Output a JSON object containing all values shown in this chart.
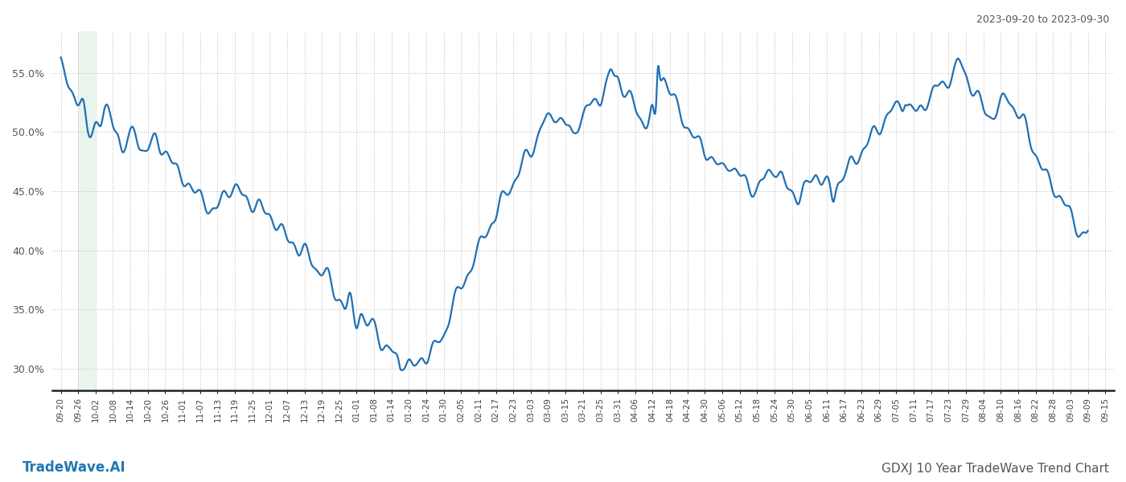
{
  "title_top_right": "2023-09-20 to 2023-09-30",
  "title_bottom_left": "TradeWave.AI",
  "title_bottom_right": "GDXJ 10 Year TradeWave Trend Chart",
  "line_color": "#2070b4",
  "line_width": 1.6,
  "shade_color": "#d4edda",
  "shade_alpha": 0.5,
  "background_color": "#ffffff",
  "grid_color": "#bbbbbb",
  "grid_linestyle": ":",
  "ylim": [
    0.282,
    0.585
  ],
  "yticks": [
    0.3,
    0.35,
    0.4,
    0.45,
    0.5,
    0.55
  ],
  "xtick_labels": [
    "09-20",
    "09-26",
    "10-02",
    "10-08",
    "10-14",
    "10-20",
    "10-26",
    "11-01",
    "11-07",
    "11-13",
    "11-19",
    "11-25",
    "12-01",
    "12-07",
    "12-13",
    "12-19",
    "12-25",
    "01-01",
    "01-08",
    "01-14",
    "01-20",
    "01-24",
    "01-30",
    "02-05",
    "02-11",
    "02-17",
    "02-23",
    "03-03",
    "03-09",
    "03-15",
    "03-21",
    "03-25",
    "03-31",
    "04-06",
    "04-12",
    "04-18",
    "04-24",
    "04-30",
    "05-06",
    "05-12",
    "05-18",
    "05-24",
    "05-30",
    "06-05",
    "06-11",
    "06-17",
    "06-23",
    "06-29",
    "07-05",
    "07-11",
    "07-17",
    "07-23",
    "07-29",
    "08-04",
    "08-10",
    "08-16",
    "08-22",
    "08-28",
    "09-03",
    "09-09",
    "09-15"
  ],
  "dense_x": [],
  "dense_y": []
}
